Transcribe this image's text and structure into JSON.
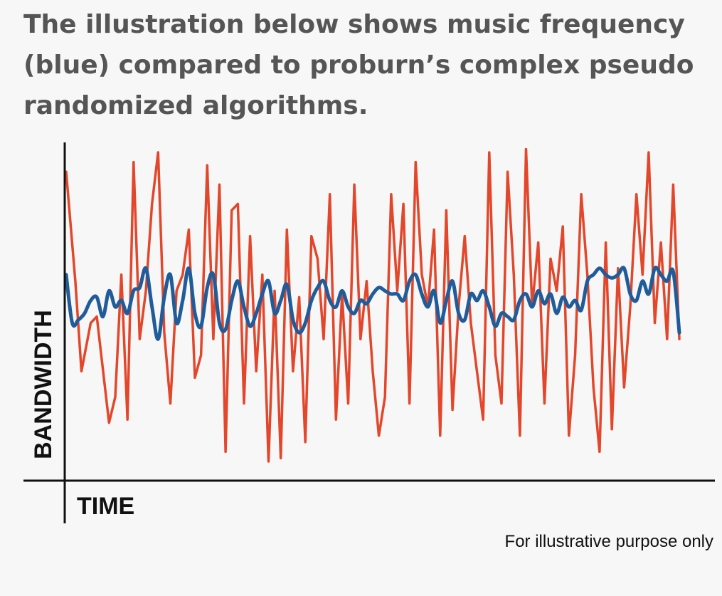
{
  "headline": "The illustration below shows music frequency (blue) compared to proburn’s complex pseudo randomized algorithms.",
  "footnote": "For illustrative purpose only",
  "colors": {
    "background": "#f7f7f7",
    "headline": "#555555",
    "axis": "#111111",
    "music": "#1f5c99",
    "algorithm": "#e2472b"
  },
  "chart_data": {
    "type": "line",
    "xlabel": "TIME",
    "ylabel": "BANDWIDTH",
    "ylim": [
      0,
      100
    ],
    "grid": false,
    "legend": "none",
    "x_tick_labels": "none",
    "y_tick_labels": "none",
    "series": [
      {
        "color": "#e2472b",
        "x": [
          0,
          1.5,
          2.5,
          4,
          5,
          7,
          8,
          9,
          10,
          11,
          12,
          13,
          14,
          15,
          16,
          17,
          18,
          19,
          20,
          21,
          22,
          23,
          24,
          25,
          26,
          27,
          28,
          29,
          30,
          31,
          32,
          33,
          34,
          35,
          36,
          37,
          38,
          39,
          40,
          41,
          42,
          43,
          44,
          45,
          46,
          47,
          48,
          49,
          50,
          51,
          52,
          53,
          54,
          55,
          56,
          57,
          58,
          59,
          60,
          61,
          62,
          63,
          64,
          65,
          66,
          67,
          68,
          69,
          70,
          71,
          72,
          73,
          74,
          75,
          76,
          77,
          78,
          79,
          80,
          81,
          82,
          83,
          84,
          85,
          86,
          87,
          88,
          89,
          90,
          91,
          92,
          93,
          94,
          95,
          96,
          97,
          98,
          99,
          100
        ],
        "values": [
          92,
          58,
          30,
          45,
          47,
          14,
          22,
          60,
          15,
          95,
          40,
          55,
          82,
          98,
          42,
          20,
          55,
          60,
          74,
          28,
          35,
          94,
          40,
          88,
          5,
          80,
          82,
          20,
          72,
          30,
          60,
          2,
          55,
          3,
          74,
          30,
          53,
          8,
          72,
          65,
          40,
          85,
          15,
          54,
          20,
          88,
          40,
          58,
          30,
          10,
          22,
          85,
          55,
          82,
          20,
          95,
          60,
          50,
          74,
          10,
          80,
          18,
          50,
          72,
          45,
          30,
          15,
          98,
          35,
          20,
          92,
          60,
          10,
          99,
          50,
          70,
          20,
          65,
          55,
          75,
          10,
          35,
          85,
          60,
          25,
          5,
          70,
          12,
          62,
          25,
          50,
          85,
          60,
          98,
          45,
          70,
          40,
          88,
          40
        ]
      },
      {
        "color": "#1f5c99",
        "x": [
          0,
          1,
          2,
          3,
          4,
          5,
          6,
          7,
          8,
          9,
          10,
          11,
          12,
          13,
          14,
          15,
          16,
          17,
          18,
          19,
          20,
          21,
          22,
          23,
          24,
          25,
          26,
          27,
          28,
          29,
          30,
          31,
          32,
          33,
          34,
          35,
          36,
          37,
          38,
          39,
          40,
          41,
          42,
          43,
          44,
          45,
          46,
          47,
          48,
          49,
          50,
          51,
          52,
          53,
          54,
          55,
          56,
          57,
          58,
          59,
          60,
          61,
          62,
          63,
          64,
          65,
          66,
          67,
          68,
          69,
          70,
          71,
          72,
          73,
          74,
          75,
          76,
          77,
          78,
          79,
          80,
          81,
          82,
          83,
          84,
          85,
          86,
          87,
          88,
          89,
          90,
          91,
          92,
          93,
          94,
          95,
          96,
          97,
          98,
          99,
          100
        ],
        "values": [
          60,
          45,
          46,
          48,
          52,
          53,
          47,
          55,
          50,
          52,
          48,
          55,
          56,
          62,
          50,
          40,
          53,
          60,
          45,
          52,
          62,
          48,
          44,
          56,
          60,
          45,
          43,
          52,
          58,
          50,
          44,
          48,
          54,
          58,
          48,
          52,
          57,
          46,
          42,
          45,
          52,
          56,
          58,
          52,
          50,
          55,
          50,
          48,
          52,
          51,
          54,
          56,
          55,
          54,
          54,
          52,
          58,
          60,
          54,
          50,
          55,
          45,
          52,
          58,
          48,
          46,
          54,
          52,
          55,
          50,
          44,
          48,
          47,
          46,
          52,
          54,
          50,
          55,
          51,
          54,
          48,
          53,
          50,
          52,
          49,
          58,
          60,
          62,
          60,
          59,
          60,
          62,
          54,
          52,
          58,
          54,
          62,
          60,
          58,
          61,
          42
        ]
      }
    ]
  }
}
